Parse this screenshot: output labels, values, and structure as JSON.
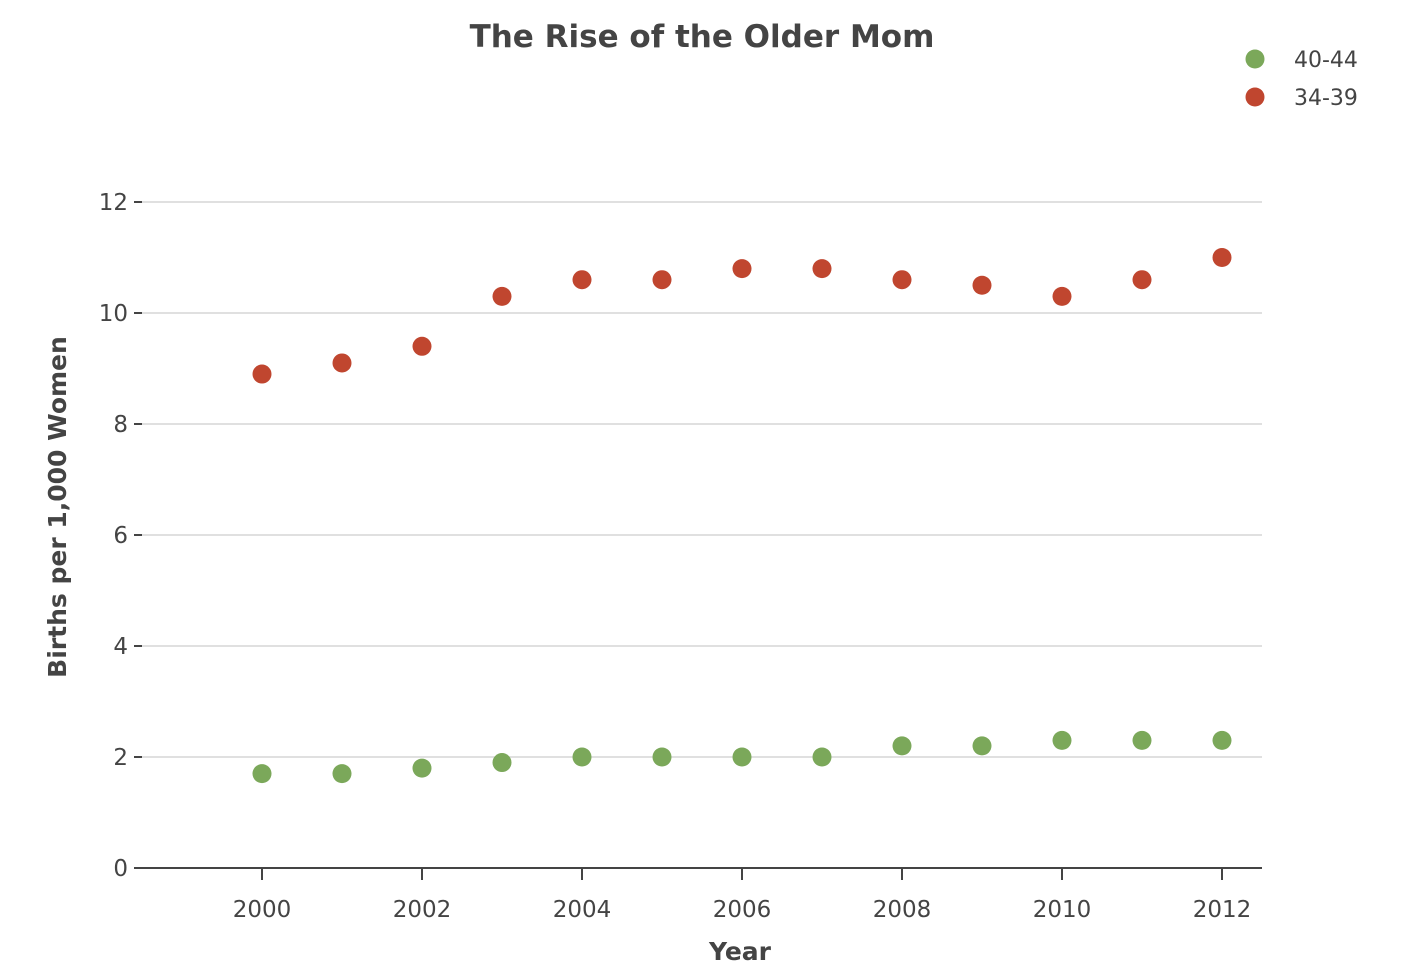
{
  "chart_data": {
    "type": "scatter",
    "title": "The Rise of the Older Mom",
    "xlabel": "Year",
    "ylabel": "Births per 1,000 Women",
    "xlim": [
      1998.5,
      2012.5
    ],
    "ylim": [
      0,
      12
    ],
    "xticks": [
      2000,
      2002,
      2004,
      2006,
      2008,
      2010,
      2012
    ],
    "yticks": [
      0,
      2,
      4,
      6,
      8,
      10,
      12
    ],
    "grid": true,
    "legend_position": "top-right",
    "x": [
      2000,
      2001,
      2002,
      2003,
      2004,
      2005,
      2006,
      2007,
      2008,
      2009,
      2010,
      2011,
      2012
    ],
    "series": [
      {
        "name": "40-44",
        "color": "#7ba85a",
        "values": [
          1.7,
          1.7,
          1.8,
          1.9,
          2.0,
          2.0,
          2.0,
          2.0,
          2.2,
          2.2,
          2.3,
          2.3,
          2.3
        ]
      },
      {
        "name": "34-39",
        "color": "#c0462f",
        "values": [
          8.9,
          9.1,
          9.4,
          10.3,
          10.6,
          10.6,
          10.8,
          10.8,
          10.6,
          10.5,
          10.3,
          10.6,
          11.0
        ]
      }
    ]
  }
}
